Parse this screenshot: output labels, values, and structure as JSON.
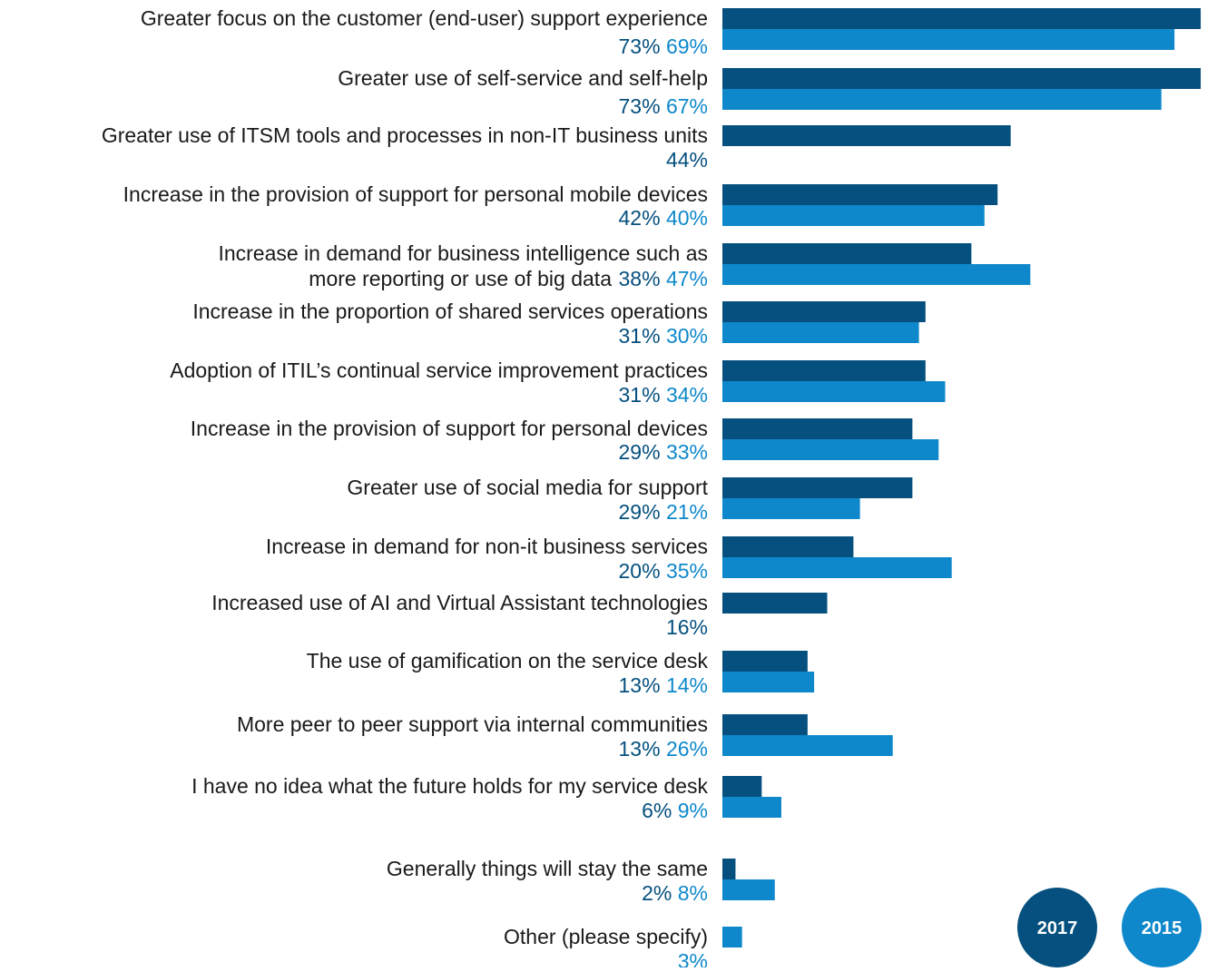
{
  "colors": {
    "series_2017": "#05507e",
    "series_2015": "#0e88cb",
    "label_text": "#1a1a1a",
    "background": "#ffffff"
  },
  "legend": [
    {
      "label": "2017",
      "color": "#05507e"
    },
    {
      "label": "2015",
      "color": "#0e88cb"
    }
  ],
  "chart_data": {
    "type": "bar",
    "orientation": "horizontal",
    "unit": "%",
    "grid": false,
    "axis_visible": false,
    "legend_position": "bottom-right",
    "categories": [
      [
        "Greater focus on the customer (end-user) support experience"
      ],
      [
        "Greater use of self-service and self-help"
      ],
      [
        "Greater use of ITSM tools and processes in non-IT business units"
      ],
      [
        "Increase in the provision of support for personal mobile devices"
      ],
      [
        "Increase in demand for business intelligence such as",
        "more reporting or use of big data"
      ],
      [
        "Increase in the proportion of shared services operations"
      ],
      [
        "Adoption of ITIL’s continual service improvement practices"
      ],
      [
        "Increase in the provision of support for personal devices"
      ],
      [
        "Greater use of social media for support"
      ],
      [
        "Increase in demand for non-it business services"
      ],
      [
        "Increased use of AI and Virtual Assistant technologies"
      ],
      [
        "The use of gamification on the service desk"
      ],
      [
        "More peer to peer support via internal communities"
      ],
      [
        "I have no idea what the future holds for my service desk"
      ],
      [
        "Generally things will stay the same"
      ],
      [
        "Other (please specify)"
      ]
    ],
    "series": [
      {
        "name": "2017",
        "values": [
          73,
          73,
          44,
          42,
          38,
          31,
          31,
          29,
          29,
          20,
          16,
          13,
          13,
          6,
          2,
          null
        ]
      },
      {
        "name": "2015",
        "values": [
          69,
          67,
          null,
          40,
          47,
          30,
          34,
          33,
          21,
          35,
          null,
          14,
          26,
          9,
          8,
          3
        ]
      }
    ]
  }
}
